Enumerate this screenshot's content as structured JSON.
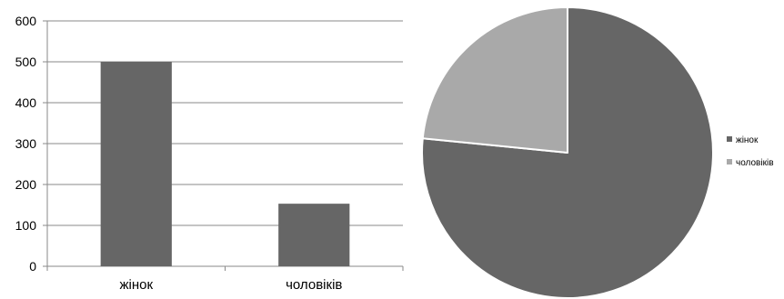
{
  "chart_data": [
    {
      "type": "bar",
      "categories": [
        "жінок",
        "чоловіків"
      ],
      "values": [
        500,
        153
      ],
      "title": "",
      "xlabel": "",
      "ylabel": "",
      "ylim": [
        0,
        600
      ],
      "yticks": [
        "0",
        "100",
        "200",
        "300",
        "400",
        "500",
        "600"
      ],
      "grid": true,
      "legend": "none",
      "colors": {
        "bar": "#666666",
        "grid": "#8a8a8a",
        "axis": "#8a8a8a"
      }
    },
    {
      "type": "pie",
      "categories": [
        "жінок",
        "чоловіків"
      ],
      "values": [
        500,
        153
      ],
      "title": "",
      "legend": "right",
      "colors": [
        "#666666",
        "#a9a9a9"
      ],
      "border_color": "#ffffff"
    }
  ]
}
